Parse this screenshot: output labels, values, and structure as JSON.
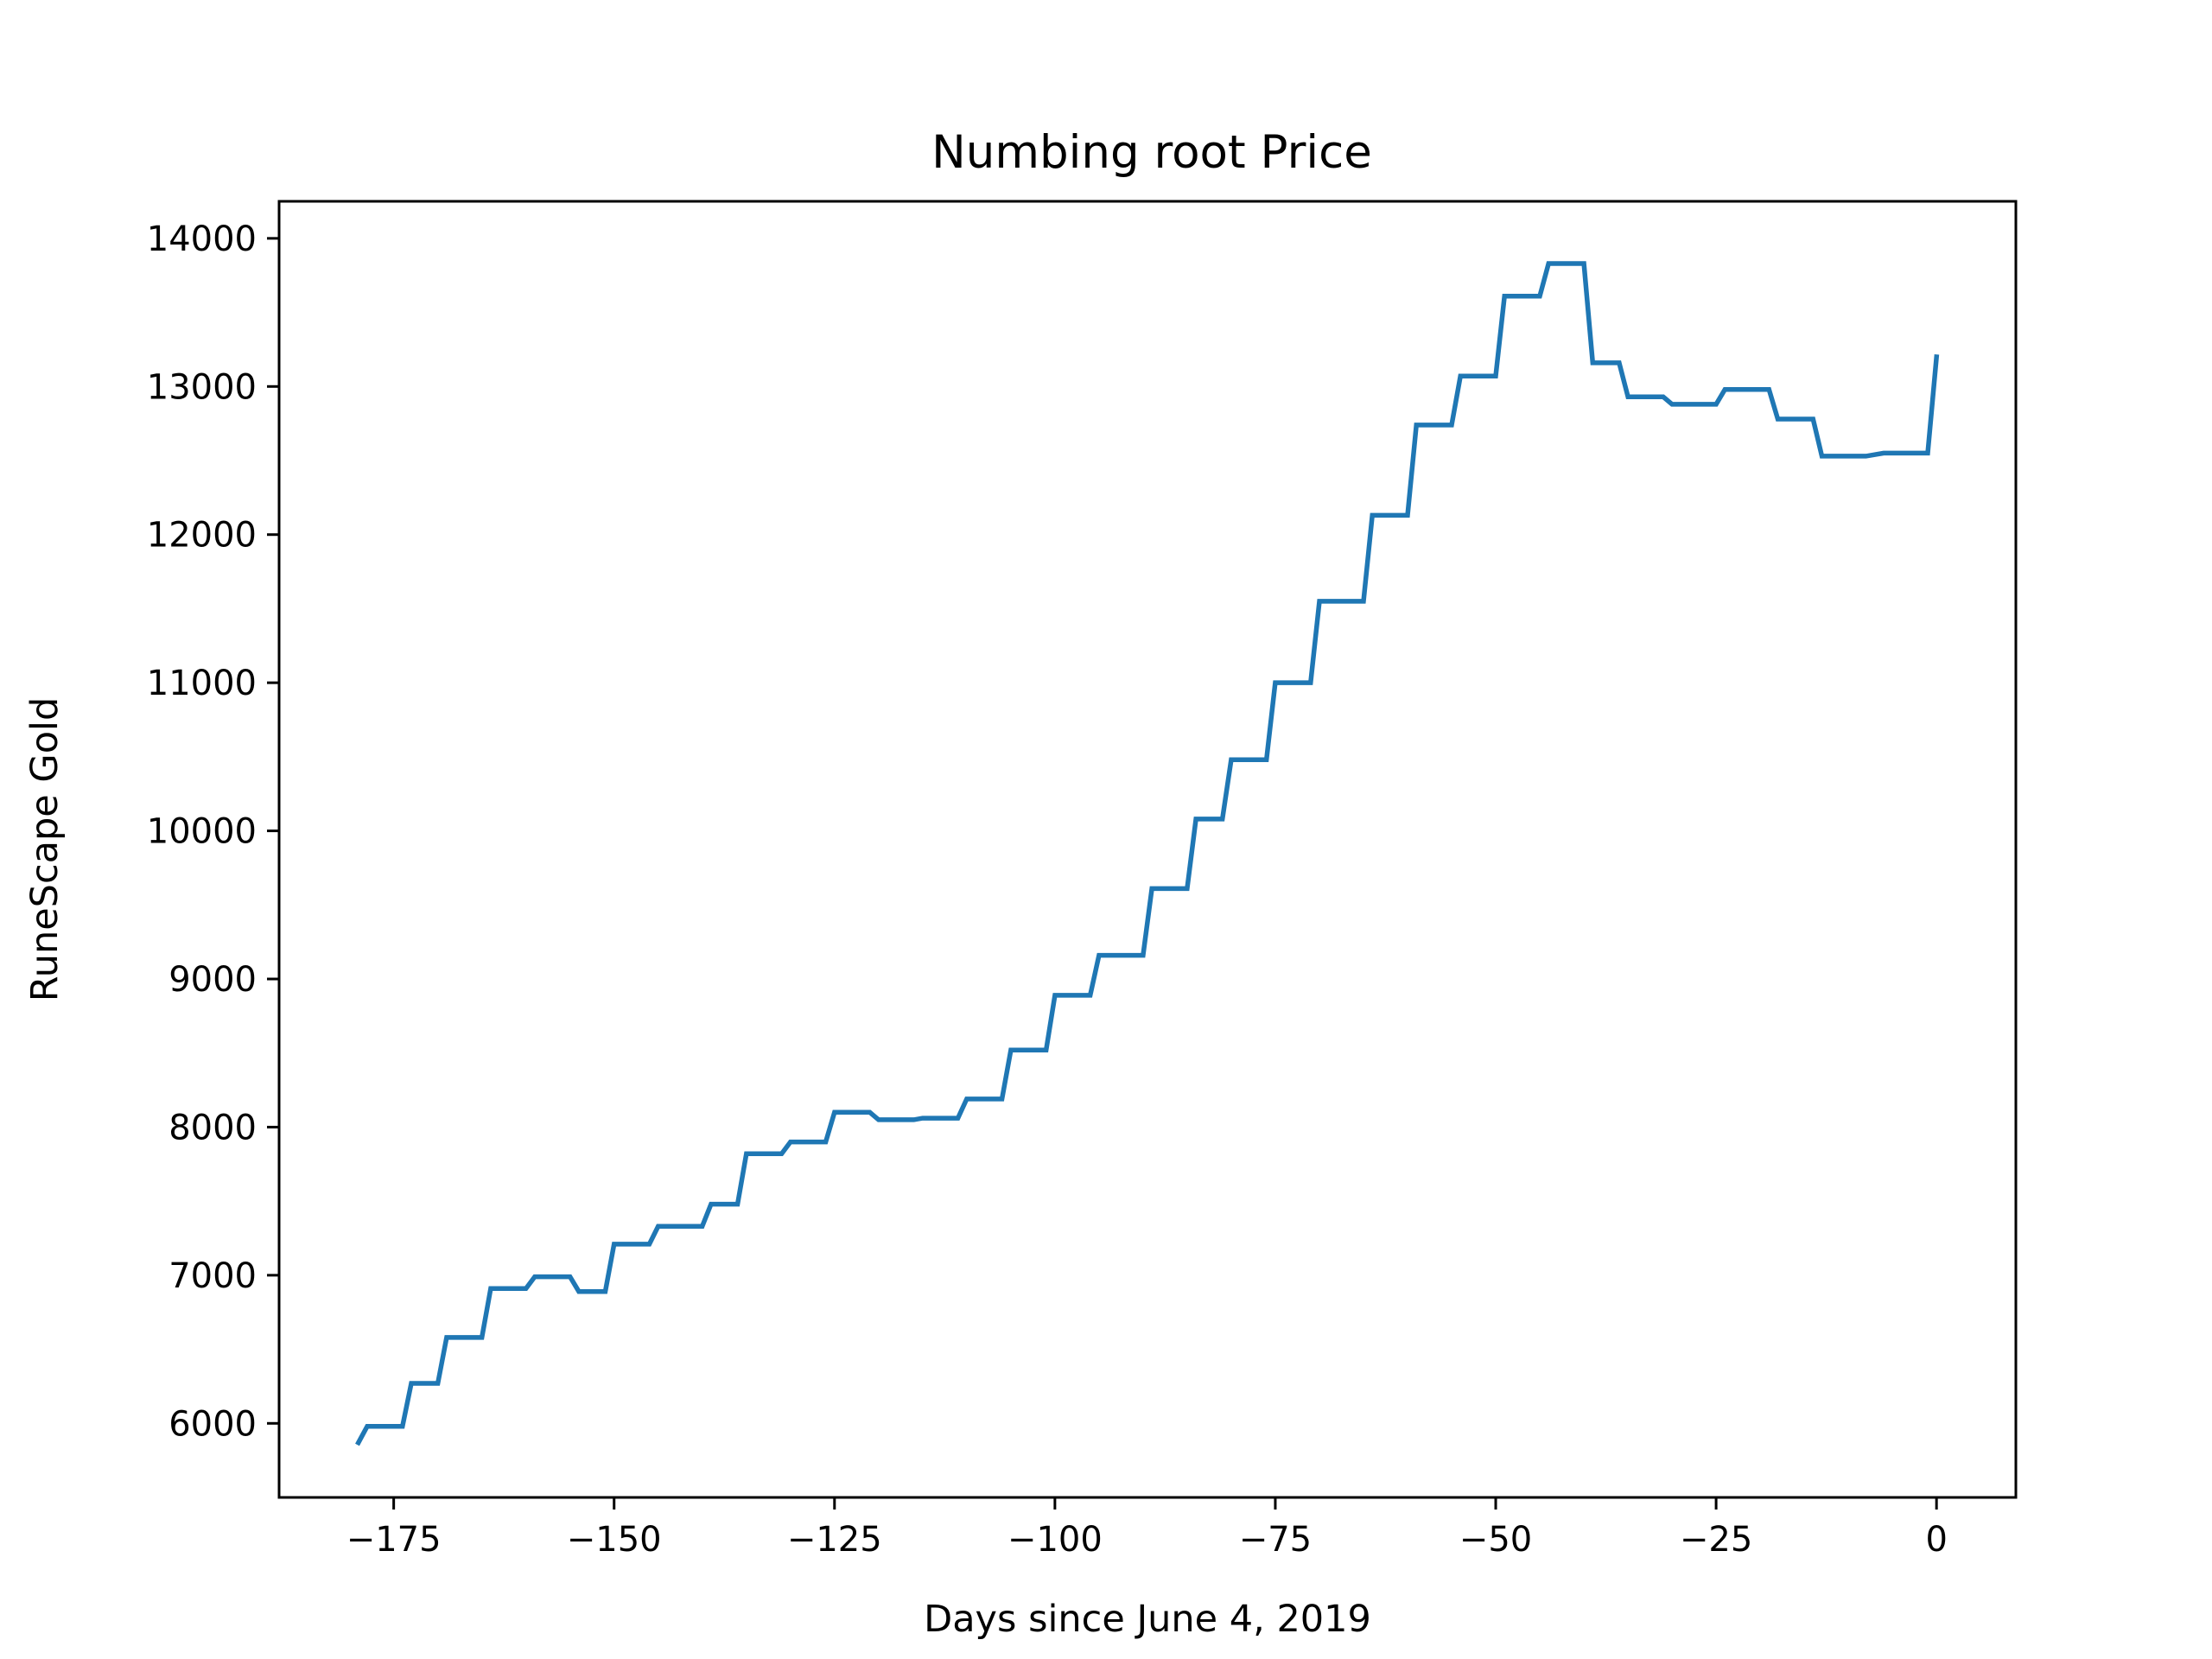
{
  "chart_data": {
    "type": "line",
    "title": "Numbing root Price",
    "xlabel": "Days since June 4, 2019",
    "ylabel": "RuneScape Gold",
    "xlim": [
      -188,
      9
    ],
    "ylim": [
      5500,
      14250
    ],
    "xticks": [
      -175,
      -150,
      -125,
      -100,
      -75,
      -50,
      -25,
      0
    ],
    "xtick_labels": [
      "−175",
      "−150",
      "−125",
      "−100",
      "−75",
      "−50",
      "−25",
      "0"
    ],
    "yticks": [
      6000,
      7000,
      8000,
      9000,
      10000,
      11000,
      12000,
      13000,
      14000
    ],
    "ytick_labels": [
      "6000",
      "7000",
      "8000",
      "9000",
      "10000",
      "11000",
      "12000",
      "13000",
      "14000"
    ],
    "grid": false,
    "line_color": "#1f77b4",
    "series": [
      {
        "x": [
          -179,
          -178,
          -174,
          -173,
          -170,
          -169,
          -165,
          -164,
          -160,
          -159,
          -155,
          -154,
          -151,
          -150,
          -146,
          -145,
          -140,
          -139,
          -136,
          -135,
          -131,
          -130,
          -126,
          -125,
          -121,
          -120,
          -116,
          -115,
          -111,
          -110,
          -106,
          -105,
          -101,
          -100,
          -96,
          -95,
          -90,
          -89,
          -85,
          -84,
          -81,
          -80,
          -76,
          -75,
          -71,
          -70,
          -65,
          -64,
          -60,
          -59,
          -55,
          -54,
          -50,
          -49,
          -45,
          -44,
          -40,
          -39,
          -36,
          -35,
          -31,
          -30,
          -25,
          -24,
          -19,
          -18,
          -14,
          -13,
          -9,
          -8,
          -6,
          -5,
          -1,
          0
        ],
        "y": [
          5870,
          5980,
          5980,
          6270,
          6270,
          6580,
          6580,
          6910,
          6910,
          6990,
          6990,
          6890,
          6890,
          7210,
          7210,
          7330,
          7330,
          7480,
          7480,
          7820,
          7820,
          7900,
          7900,
          8100,
          8100,
          8050,
          8050,
          8060,
          8060,
          8190,
          8190,
          8520,
          8520,
          8890,
          8890,
          9160,
          9160,
          9610,
          9610,
          10080,
          10080,
          10480,
          10480,
          11000,
          11000,
          11550,
          11550,
          12130,
          12130,
          12740,
          12740,
          13070,
          13070,
          13610,
          13610,
          13830,
          13830,
          13160,
          13160,
          12930,
          12930,
          12880,
          12880,
          12980,
          12980,
          12780,
          12780,
          12530,
          12530,
          12530,
          12550,
          12550,
          12550,
          13200
        ]
      }
    ]
  }
}
